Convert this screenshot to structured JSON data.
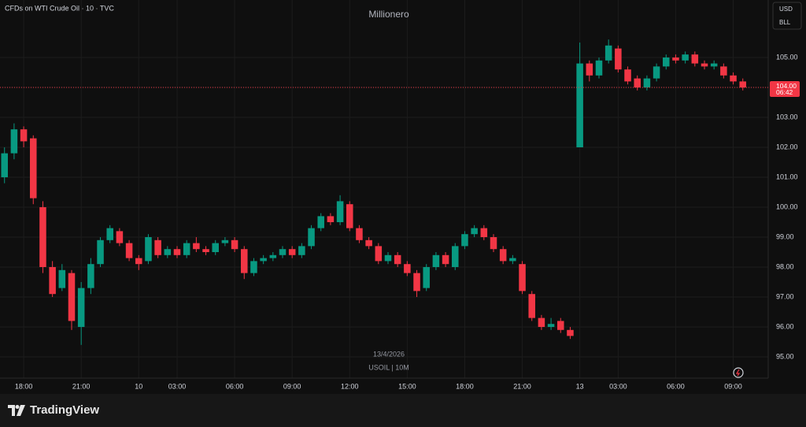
{
  "chart_data": {
    "type": "candlestick",
    "title": "CFDs on WTI Crude Oil · 10 · TVC",
    "watermark": "Millionero",
    "currency": "USD",
    "unit": "BLL",
    "date_label": "13/4/2026",
    "symbol_label": "USOIL | 10M",
    "brand": "TradingView",
    "up_color": "#089981",
    "down_color": "#f23645",
    "grid": true,
    "open": [
      101.0,
      101.8,
      102.6,
      102.3,
      100.0,
      98.0,
      97.3,
      97.8,
      96.0,
      97.3,
      98.1,
      98.9,
      99.2,
      98.8,
      98.3,
      98.2,
      98.9,
      98.4,
      98.6,
      98.4,
      98.8,
      98.6,
      98.5,
      98.8,
      98.9,
      98.6,
      97.8,
      98.2,
      98.3,
      98.4,
      98.6,
      98.4,
      98.7,
      99.3,
      99.7,
      99.5,
      100.1,
      99.3,
      98.9,
      98.7,
      98.2,
      98.4,
      98.1,
      97.8,
      97.3,
      98.0,
      98.4,
      98.0,
      98.7,
      99.1,
      99.3,
      99.0,
      98.6,
      98.2,
      98.1,
      97.1,
      96.3,
      96.0,
      96.2,
      95.9,
      102.0,
      104.8,
      104.4,
      104.9,
      105.3,
      104.6,
      104.3,
      104.0,
      104.3,
      104.7,
      105.0,
      104.9,
      105.1,
      104.8,
      104.7,
      104.7,
      104.4,
      104.2
    ],
    "high": [
      102.0,
      102.8,
      102.7,
      102.4,
      100.2,
      98.2,
      98.1,
      97.9,
      97.5,
      98.3,
      99.0,
      99.4,
      99.3,
      98.9,
      98.4,
      99.1,
      99.0,
      98.7,
      98.7,
      98.9,
      99.0,
      98.7,
      98.9,
      99.0,
      99.0,
      98.7,
      98.3,
      98.4,
      98.5,
      98.7,
      98.7,
      98.8,
      99.4,
      99.8,
      99.8,
      100.4,
      100.2,
      99.4,
      99.0,
      98.8,
      98.5,
      98.5,
      98.2,
      97.9,
      98.1,
      98.5,
      98.5,
      98.8,
      99.2,
      99.4,
      99.4,
      99.1,
      98.7,
      98.4,
      98.2,
      97.2,
      96.4,
      96.3,
      96.3,
      96.0,
      105.5,
      104.9,
      105.0,
      105.6,
      105.4,
      104.7,
      104.4,
      104.4,
      104.8,
      105.1,
      105.1,
      105.2,
      105.2,
      104.9,
      104.9,
      104.8,
      104.5,
      104.3
    ],
    "low": [
      100.8,
      101.6,
      102.0,
      100.1,
      97.8,
      97.0,
      97.2,
      95.9,
      95.4,
      97.1,
      98.0,
      98.8,
      98.7,
      98.2,
      97.9,
      98.1,
      98.3,
      98.3,
      98.3,
      98.3,
      98.5,
      98.4,
      98.4,
      98.7,
      98.5,
      97.6,
      97.7,
      98.1,
      98.2,
      98.3,
      98.3,
      98.3,
      98.6,
      99.2,
      99.4,
      99.4,
      99.2,
      98.8,
      98.6,
      98.1,
      98.1,
      98.0,
      97.7,
      97.0,
      97.2,
      97.9,
      98.0,
      97.9,
      98.6,
      99.0,
      98.9,
      98.5,
      98.1,
      98.1,
      97.1,
      96.2,
      95.9,
      95.9,
      95.8,
      95.6,
      102.0,
      104.2,
      104.3,
      104.8,
      104.5,
      104.1,
      103.9,
      103.9,
      104.2,
      104.6,
      104.8,
      104.8,
      104.7,
      104.6,
      104.6,
      104.3,
      104.1,
      103.9
    ],
    "close": [
      101.8,
      102.6,
      102.2,
      100.3,
      98.0,
      97.1,
      97.9,
      96.2,
      97.3,
      98.1,
      98.9,
      99.3,
      98.8,
      98.3,
      98.1,
      99.0,
      98.4,
      98.6,
      98.4,
      98.8,
      98.6,
      98.5,
      98.8,
      98.9,
      98.6,
      97.8,
      98.2,
      98.3,
      98.4,
      98.6,
      98.4,
      98.7,
      99.3,
      99.7,
      99.5,
      100.2,
      99.3,
      98.9,
      98.7,
      98.2,
      98.4,
      98.1,
      97.8,
      97.2,
      98.0,
      98.4,
      98.1,
      98.7,
      99.1,
      99.3,
      99.0,
      98.6,
      98.2,
      98.3,
      97.2,
      96.3,
      96.0,
      96.1,
      95.9,
      95.7,
      104.8,
      104.4,
      104.9,
      105.4,
      104.6,
      104.2,
      104.0,
      104.3,
      104.7,
      105.0,
      104.9,
      105.1,
      104.8,
      104.7,
      104.8,
      104.4,
      104.2,
      104.0
    ],
    "last_price": {
      "value": 104.0,
      "label": "104.00"
    },
    "countdown": "06:42",
    "xlim": [
      -0.47,
      79.65
    ],
    "xticks": [
      {
        "value": 2,
        "label": "18:00"
      },
      {
        "value": 8,
        "label": "21:00"
      },
      {
        "value": 14,
        "label": "10"
      },
      {
        "value": 18,
        "label": "03:00"
      },
      {
        "value": 24,
        "label": "06:00"
      },
      {
        "value": 30,
        "label": "09:00"
      },
      {
        "value": 36,
        "label": "12:00"
      },
      {
        "value": 42,
        "label": "15:00"
      },
      {
        "value": 48,
        "label": "18:00"
      },
      {
        "value": 54,
        "label": "21:00"
      },
      {
        "value": 60,
        "label": "13"
      },
      {
        "value": 64,
        "label": "03:00"
      },
      {
        "value": 70,
        "label": "06:00"
      },
      {
        "value": 76,
        "label": "09:00"
      }
    ],
    "ylim": [
      94.29,
      106.92
    ],
    "yticks": [
      {
        "value": 95,
        "label": "95.00"
      },
      {
        "value": 96,
        "label": "96.00"
      },
      {
        "value": 97,
        "label": "97.00"
      },
      {
        "value": 98,
        "label": "98.00"
      },
      {
        "value": 99,
        "label": "99.00"
      },
      {
        "value": 100,
        "label": "100.00"
      },
      {
        "value": 101,
        "label": "101.00"
      },
      {
        "value": 102,
        "label": "102.00"
      },
      {
        "value": 103,
        "label": "103.00"
      },
      {
        "value": 104,
        "label": "104.00"
      },
      {
        "value": 105,
        "label": "105.00"
      }
    ]
  }
}
